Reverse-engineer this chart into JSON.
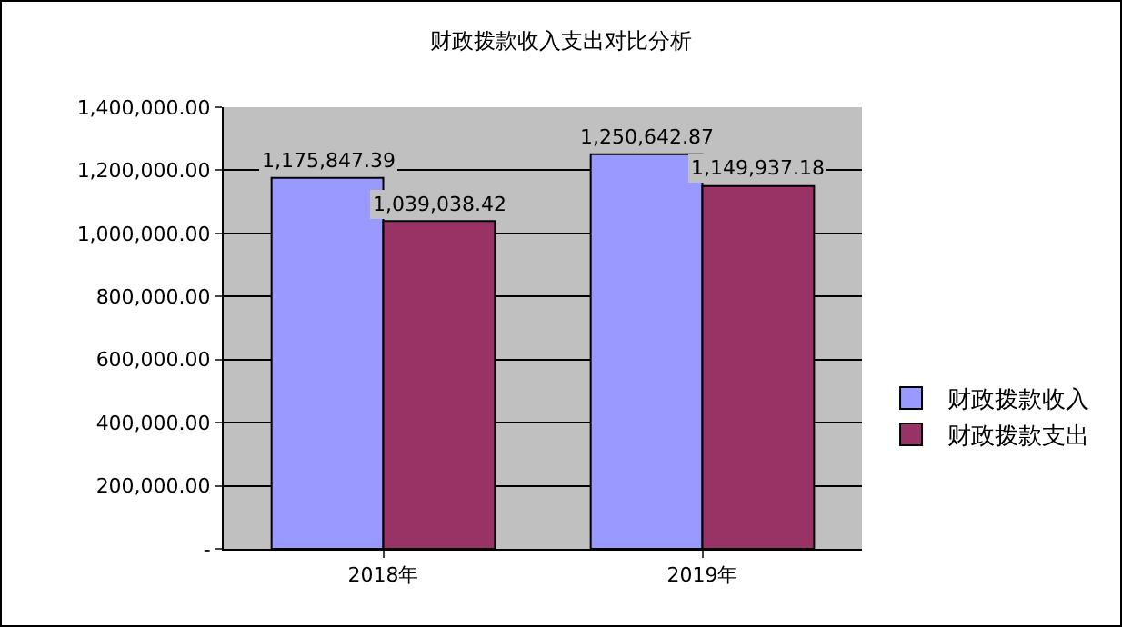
{
  "chart_data": {
    "type": "bar",
    "title": "财政拨款收入支出对比分析",
    "categories": [
      "2018年",
      "2019年"
    ],
    "series": [
      {
        "name": "财政拨款收入",
        "color": "#9999ff",
        "values": [
          1175847.39,
          1250642.87
        ],
        "value_labels": [
          "1,175,847.39",
          "1,250,642.87"
        ]
      },
      {
        "name": "财政拨款支出",
        "color": "#993366",
        "values": [
          1039038.42,
          1149937.18
        ],
        "value_labels": [
          "1,039,038.42",
          "1,149,937.18"
        ]
      }
    ],
    "ylim": [
      0,
      1400000
    ],
    "yticks": [
      {
        "value": 0,
        "label": "-"
      },
      {
        "value": 200000,
        "label": "200,000.00"
      },
      {
        "value": 400000,
        "label": "400,000.00"
      },
      {
        "value": 600000,
        "label": "600,000.00"
      },
      {
        "value": 800000,
        "label": "800,000.00"
      },
      {
        "value": 1000000,
        "label": "1,000,000.00"
      },
      {
        "value": 1200000,
        "label": "1,200,000.00"
      },
      {
        "value": 1400000,
        "label": "1,400,000.00"
      }
    ],
    "grid": "y",
    "legend": "right"
  }
}
